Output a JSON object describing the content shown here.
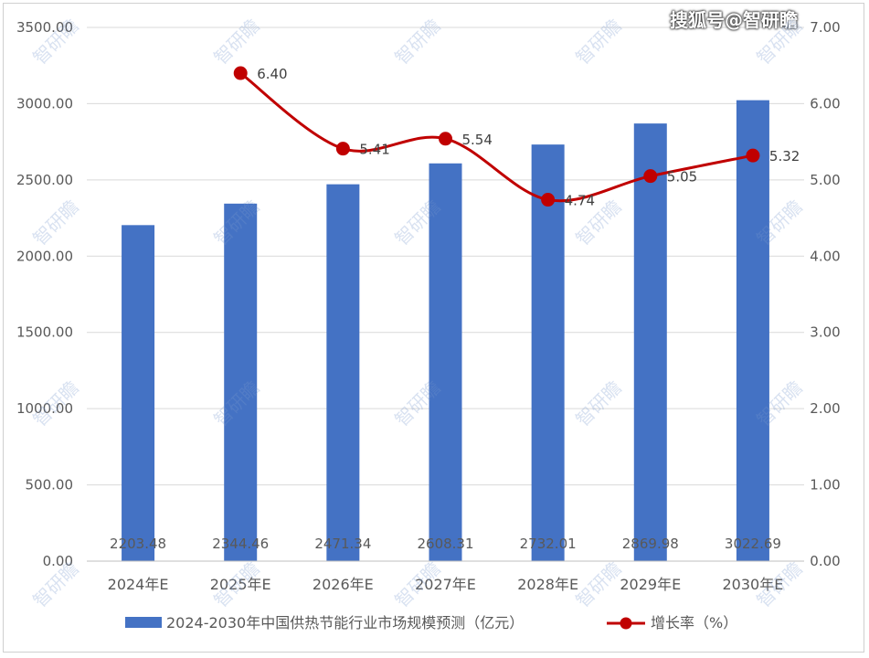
{
  "source_mark": "搜狐号@智研瞻",
  "watermark": "智研瞻",
  "colors": {
    "bar": "#4472C4",
    "line": "#C00000",
    "axis_text": "#595959",
    "grid": "#D9D9D9"
  },
  "chart_data": {
    "type": "bar",
    "categories": [
      "2024年E",
      "2025年E",
      "2026年E",
      "2027年E",
      "2028年E",
      "2029年E",
      "2030年E"
    ],
    "series": [
      {
        "name": "2024-2030年中国供热节能行业市场规模预测（亿元）",
        "type": "bar",
        "axis": "left",
        "values": [
          2203.48,
          2344.46,
          2471.34,
          2608.31,
          2732.01,
          2869.98,
          3022.69
        ],
        "labels": [
          "2203.48",
          "2344.46",
          "2471.34",
          "2608.31",
          "2732.01",
          "2869.98",
          "3022.69"
        ]
      },
      {
        "name": "增长率（%）",
        "type": "line",
        "axis": "right",
        "values": [
          null,
          6.4,
          5.41,
          5.54,
          4.74,
          5.05,
          5.32
        ],
        "labels": [
          "",
          "6.40",
          "5.41",
          "5.54",
          "4.74",
          "5.05",
          "5.32"
        ]
      }
    ],
    "y_left": {
      "ylim": [
        0,
        3500
      ],
      "ticks": [
        "0.00",
        "500.00",
        "1000.00",
        "1500.00",
        "2000.00",
        "2500.00",
        "3000.00",
        "3500.00"
      ]
    },
    "y_right": {
      "ylim": [
        0,
        7
      ],
      "ticks": [
        "0.00",
        "1.00",
        "2.00",
        "3.00",
        "4.00",
        "5.00",
        "6.00",
        "7.00"
      ]
    },
    "grid": true,
    "legend": "bottom"
  }
}
